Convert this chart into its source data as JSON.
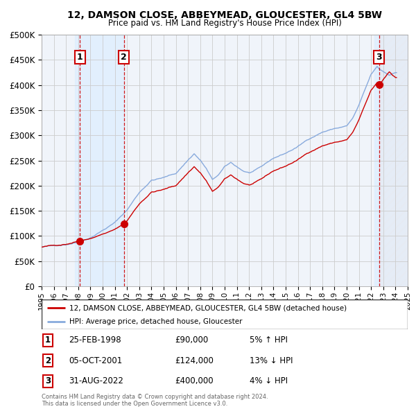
{
  "title": "12, DAMSON CLOSE, ABBEYMEAD, GLOUCESTER, GL4 5BW",
  "subtitle": "Price paid vs. HM Land Registry's House Price Index (HPI)",
  "legend_house": "12, DAMSON CLOSE, ABBEYMEAD, GLOUCESTER, GL4 5BW (detached house)",
  "legend_hpi": "HPI: Average price, detached house, Gloucester",
  "house_color": "#cc0000",
  "hpi_color": "#88aadd",
  "shade_color": "#ddeeff",
  "hatch_color": "#ccccdd",
  "transactions": [
    {
      "num": 1,
      "date": "25-FEB-1998",
      "price": 90000,
      "pct": "5%",
      "dir": "↑",
      "year_x": 1998.13
    },
    {
      "num": 2,
      "date": "05-OCT-2001",
      "price": 124000,
      "pct": "13%",
      "dir": "↓",
      "year_x": 2001.75
    },
    {
      "num": 3,
      "date": "31-AUG-2022",
      "price": 400000,
      "pct": "4%",
      "dir": "↓",
      "year_x": 2022.66
    }
  ],
  "ylim": [
    0,
    500000
  ],
  "yticks": [
    0,
    50000,
    100000,
    150000,
    200000,
    250000,
    300000,
    350000,
    400000,
    450000,
    500000
  ],
  "xlim_start": 1995.0,
  "xlim_end": 2025.0,
  "copyright": "Contains HM Land Registry data © Crown copyright and database right 2024.\nThis data is licensed under the Open Government Licence v3.0.",
  "background_color": "#ffffff",
  "grid_color": "#cccccc"
}
